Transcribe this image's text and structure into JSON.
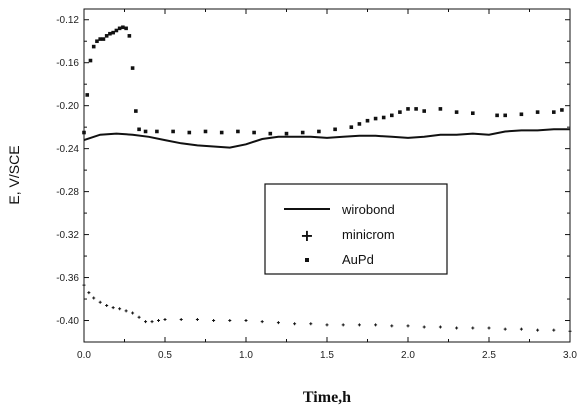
{
  "chart_data": {
    "type": "line",
    "xlabel": "Time,h",
    "ylabel": "E, V/SCE",
    "xlim": [
      0.0,
      3.0
    ],
    "ylim": [
      -0.42,
      -0.11
    ],
    "x_ticks": [
      "0.0",
      "0.5",
      "1.0",
      "1.5",
      "2.0",
      "2.5",
      "3.0"
    ],
    "x_tick_values": [
      0.0,
      0.5,
      1.0,
      1.5,
      2.0,
      2.5,
      3.0
    ],
    "y_ticks": [
      "-0.12",
      "-0.16",
      "-0.20",
      "-0.24",
      "-0.28",
      "-0.32",
      "-0.36",
      "-0.40"
    ],
    "y_tick_values": [
      -0.12,
      -0.16,
      -0.2,
      -0.24,
      -0.28,
      -0.32,
      -0.36,
      -0.4
    ],
    "grid": false,
    "legend_position": "center-right",
    "series": [
      {
        "name": "wirobond",
        "style": "solid-line",
        "color": "#111111",
        "x": [
          0.0,
          0.1,
          0.2,
          0.3,
          0.4,
          0.5,
          0.6,
          0.7,
          0.8,
          0.9,
          1.0,
          1.1,
          1.2,
          1.3,
          1.4,
          1.5,
          1.6,
          1.7,
          1.8,
          1.9,
          2.0,
          2.1,
          2.2,
          2.3,
          2.4,
          2.5,
          2.6,
          2.7,
          2.8,
          2.9,
          3.0
        ],
        "y": [
          -0.232,
          -0.227,
          -0.226,
          -0.227,
          -0.229,
          -0.232,
          -0.235,
          -0.237,
          -0.238,
          -0.239,
          -0.236,
          -0.231,
          -0.229,
          -0.229,
          -0.229,
          -0.23,
          -0.229,
          -0.228,
          -0.228,
          -0.229,
          -0.23,
          -0.229,
          -0.227,
          -0.227,
          -0.226,
          -0.227,
          -0.224,
          -0.223,
          -0.223,
          -0.222,
          -0.222
        ]
      },
      {
        "name": "minicrom",
        "style": "plus-markers",
        "color": "#111111",
        "x": [
          0.0,
          0.03,
          0.06,
          0.1,
          0.14,
          0.18,
          0.22,
          0.26,
          0.3,
          0.34,
          0.38,
          0.42,
          0.46,
          0.5,
          0.6,
          0.7,
          0.8,
          0.9,
          1.0,
          1.1,
          1.2,
          1.3,
          1.4,
          1.5,
          1.6,
          1.7,
          1.8,
          1.9,
          2.0,
          2.1,
          2.2,
          2.3,
          2.4,
          2.5,
          2.6,
          2.7,
          2.8,
          2.9,
          3.0
        ],
        "y": [
          -0.367,
          -0.374,
          -0.379,
          -0.383,
          -0.386,
          -0.388,
          -0.389,
          -0.391,
          -0.393,
          -0.397,
          -0.401,
          -0.401,
          -0.4,
          -0.399,
          -0.399,
          -0.399,
          -0.4,
          -0.4,
          -0.4,
          -0.401,
          -0.402,
          -0.403,
          -0.403,
          -0.404,
          -0.404,
          -0.404,
          -0.404,
          -0.405,
          -0.405,
          -0.406,
          -0.406,
          -0.407,
          -0.407,
          -0.407,
          -0.408,
          -0.408,
          -0.409,
          -0.409,
          -0.41
        ]
      },
      {
        "name": "AuPd",
        "style": "square-markers",
        "color": "#111111",
        "x": [
          0.0,
          0.02,
          0.04,
          0.06,
          0.08,
          0.1,
          0.12,
          0.14,
          0.16,
          0.18,
          0.2,
          0.22,
          0.24,
          0.26,
          0.28,
          0.3,
          0.32,
          0.34,
          0.38,
          0.45,
          0.55,
          0.65,
          0.75,
          0.85,
          0.95,
          1.05,
          1.15,
          1.25,
          1.35,
          1.45,
          1.55,
          1.65,
          1.7,
          1.75,
          1.8,
          1.85,
          1.9,
          1.95,
          2.0,
          2.05,
          2.1,
          2.2,
          2.3,
          2.4,
          2.55,
          2.6,
          2.7,
          2.8,
          2.9,
          2.95
        ],
        "y": [
          -0.225,
          -0.19,
          -0.158,
          -0.145,
          -0.14,
          -0.138,
          -0.138,
          -0.135,
          -0.133,
          -0.132,
          -0.13,
          -0.128,
          -0.127,
          -0.128,
          -0.135,
          -0.165,
          -0.205,
          -0.222,
          -0.224,
          -0.224,
          -0.224,
          -0.225,
          -0.224,
          -0.225,
          -0.224,
          -0.225,
          -0.226,
          -0.226,
          -0.225,
          -0.224,
          -0.222,
          -0.22,
          -0.217,
          -0.214,
          -0.212,
          -0.211,
          -0.209,
          -0.206,
          -0.203,
          -0.203,
          -0.205,
          -0.203,
          -0.206,
          -0.207,
          -0.209,
          -0.209,
          -0.208,
          -0.206,
          -0.206,
          -0.204
        ]
      }
    ]
  }
}
